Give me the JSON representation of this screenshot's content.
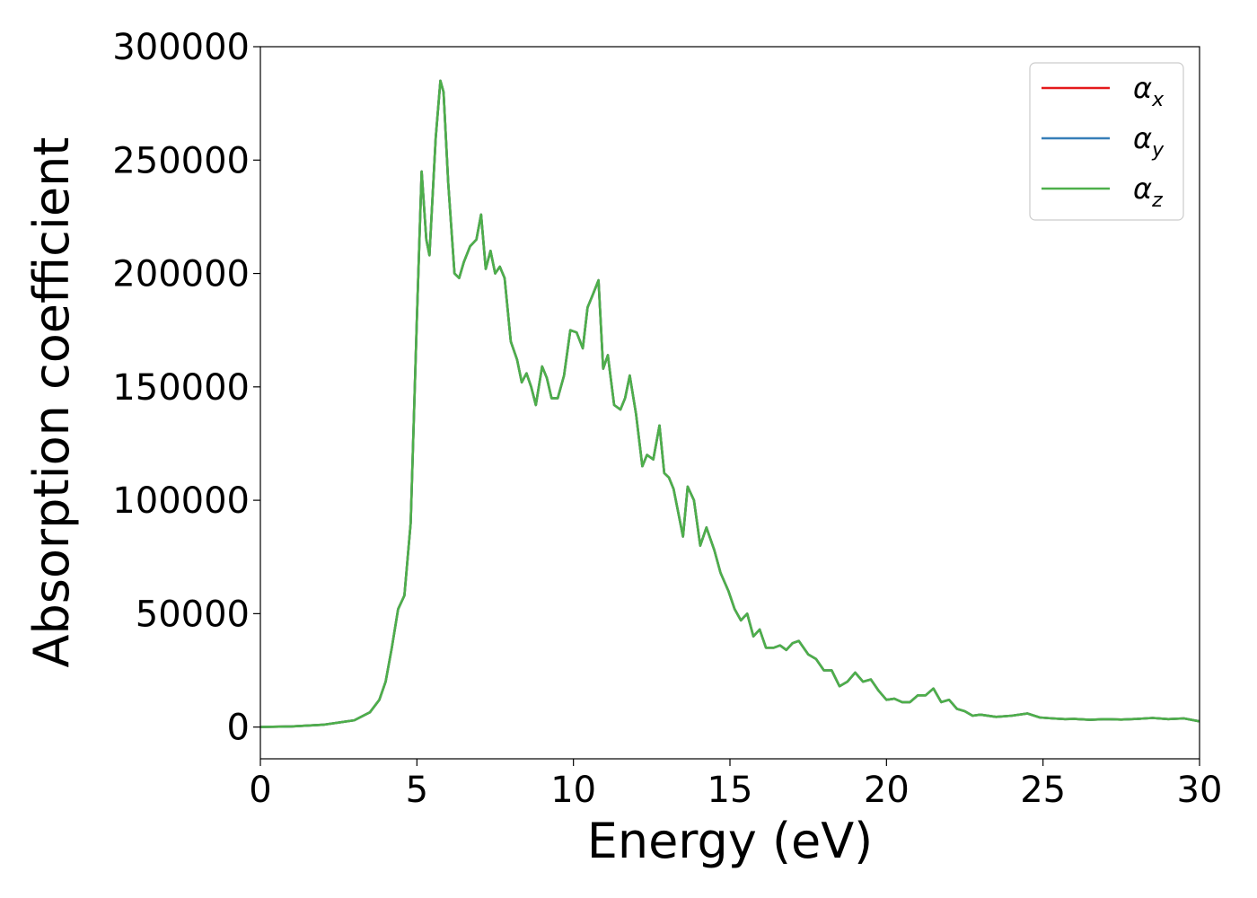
{
  "chart_data": {
    "type": "line",
    "xlabel": "Energy (eV)",
    "ylabel": "Absorption coefficient",
    "xlim": [
      0,
      30
    ],
    "ylim": [
      -14000,
      300000
    ],
    "xticks": [
      0,
      5,
      10,
      15,
      20,
      25,
      30
    ],
    "xtick_labels": [
      "0",
      "5",
      "10",
      "15",
      "20",
      "25",
      "30"
    ],
    "yticks": [
      0,
      50000,
      100000,
      150000,
      200000,
      250000,
      300000
    ],
    "ytick_labels": [
      "0",
      "50000",
      "100000",
      "150000",
      "200000",
      "250000",
      "300000"
    ],
    "grid": false,
    "legend_position": "top-right",
    "series": [
      {
        "name": "α",
        "subscript": "x",
        "color": "#e41a1c"
      },
      {
        "name": "α",
        "subscript": "y",
        "color": "#377eb8"
      },
      {
        "name": "α",
        "subscript": "z",
        "color": "#4daf4a"
      }
    ],
    "x": [
      0,
      1,
      2,
      3,
      3.5,
      3.8,
      4.0,
      4.2,
      4.4,
      4.6,
      4.8,
      5.0,
      5.15,
      5.3,
      5.4,
      5.6,
      5.75,
      5.85,
      6.0,
      6.2,
      6.35,
      6.5,
      6.7,
      6.9,
      7.05,
      7.2,
      7.35,
      7.5,
      7.65,
      7.8,
      8.0,
      8.2,
      8.35,
      8.5,
      8.65,
      8.8,
      9.0,
      9.15,
      9.3,
      9.5,
      9.7,
      9.9,
      10.1,
      10.3,
      10.45,
      10.6,
      10.8,
      10.95,
      11.1,
      11.3,
      11.5,
      11.65,
      11.8,
      12.0,
      12.2,
      12.35,
      12.55,
      12.75,
      12.9,
      13.05,
      13.2,
      13.3,
      13.5,
      13.65,
      13.85,
      14.05,
      14.25,
      14.5,
      14.7,
      14.95,
      15.15,
      15.35,
      15.55,
      15.75,
      15.95,
      16.15,
      16.4,
      16.6,
      16.8,
      17.0,
      17.2,
      17.5,
      17.75,
      18.0,
      18.25,
      18.5,
      18.75,
      19.0,
      19.25,
      19.5,
      19.75,
      20.0,
      20.25,
      20.5,
      20.75,
      21.0,
      21.25,
      21.5,
      21.75,
      22.0,
      22.25,
      22.5,
      22.75,
      23.0,
      23.5,
      24.0,
      24.5,
      24.9,
      25.3,
      25.7,
      26.0,
      26.5,
      27.0,
      27.5,
      28.0,
      28.5,
      29.0,
      29.5,
      30.0
    ],
    "values": [
      0,
      300,
      1000,
      3000,
      6500,
      12000,
      20000,
      35000,
      52000,
      58000,
      90000,
      180000,
      245000,
      215000,
      208000,
      260000,
      285000,
      280000,
      240000,
      200000,
      198000,
      205000,
      212000,
      215000,
      226000,
      202000,
      210000,
      200000,
      203000,
      198000,
      170000,
      162000,
      152000,
      156000,
      150000,
      142000,
      159000,
      154000,
      145000,
      145000,
      155000,
      175000,
      174000,
      167000,
      185000,
      190000,
      197000,
      158000,
      164000,
      142000,
      140000,
      145000,
      155000,
      138000,
      115000,
      120000,
      118000,
      133000,
      112000,
      110000,
      105000,
      98000,
      84000,
      106000,
      100000,
      80000,
      88000,
      78000,
      68000,
      60000,
      52000,
      47000,
      50000,
      40000,
      43000,
      35000,
      35000,
      36000,
      34000,
      37000,
      38000,
      32000,
      30000,
      25000,
      25000,
      18000,
      20000,
      24000,
      20000,
      21000,
      16000,
      12000,
      12500,
      11000,
      11000,
      14000,
      14000,
      17000,
      11000,
      12000,
      8000,
      7000,
      5000,
      5500,
      4500,
      5000,
      6000,
      4200,
      3800,
      3500,
      3600,
      3200,
      3500,
      3300,
      3600,
      4000,
      3500,
      3800,
      2500
    ]
  }
}
